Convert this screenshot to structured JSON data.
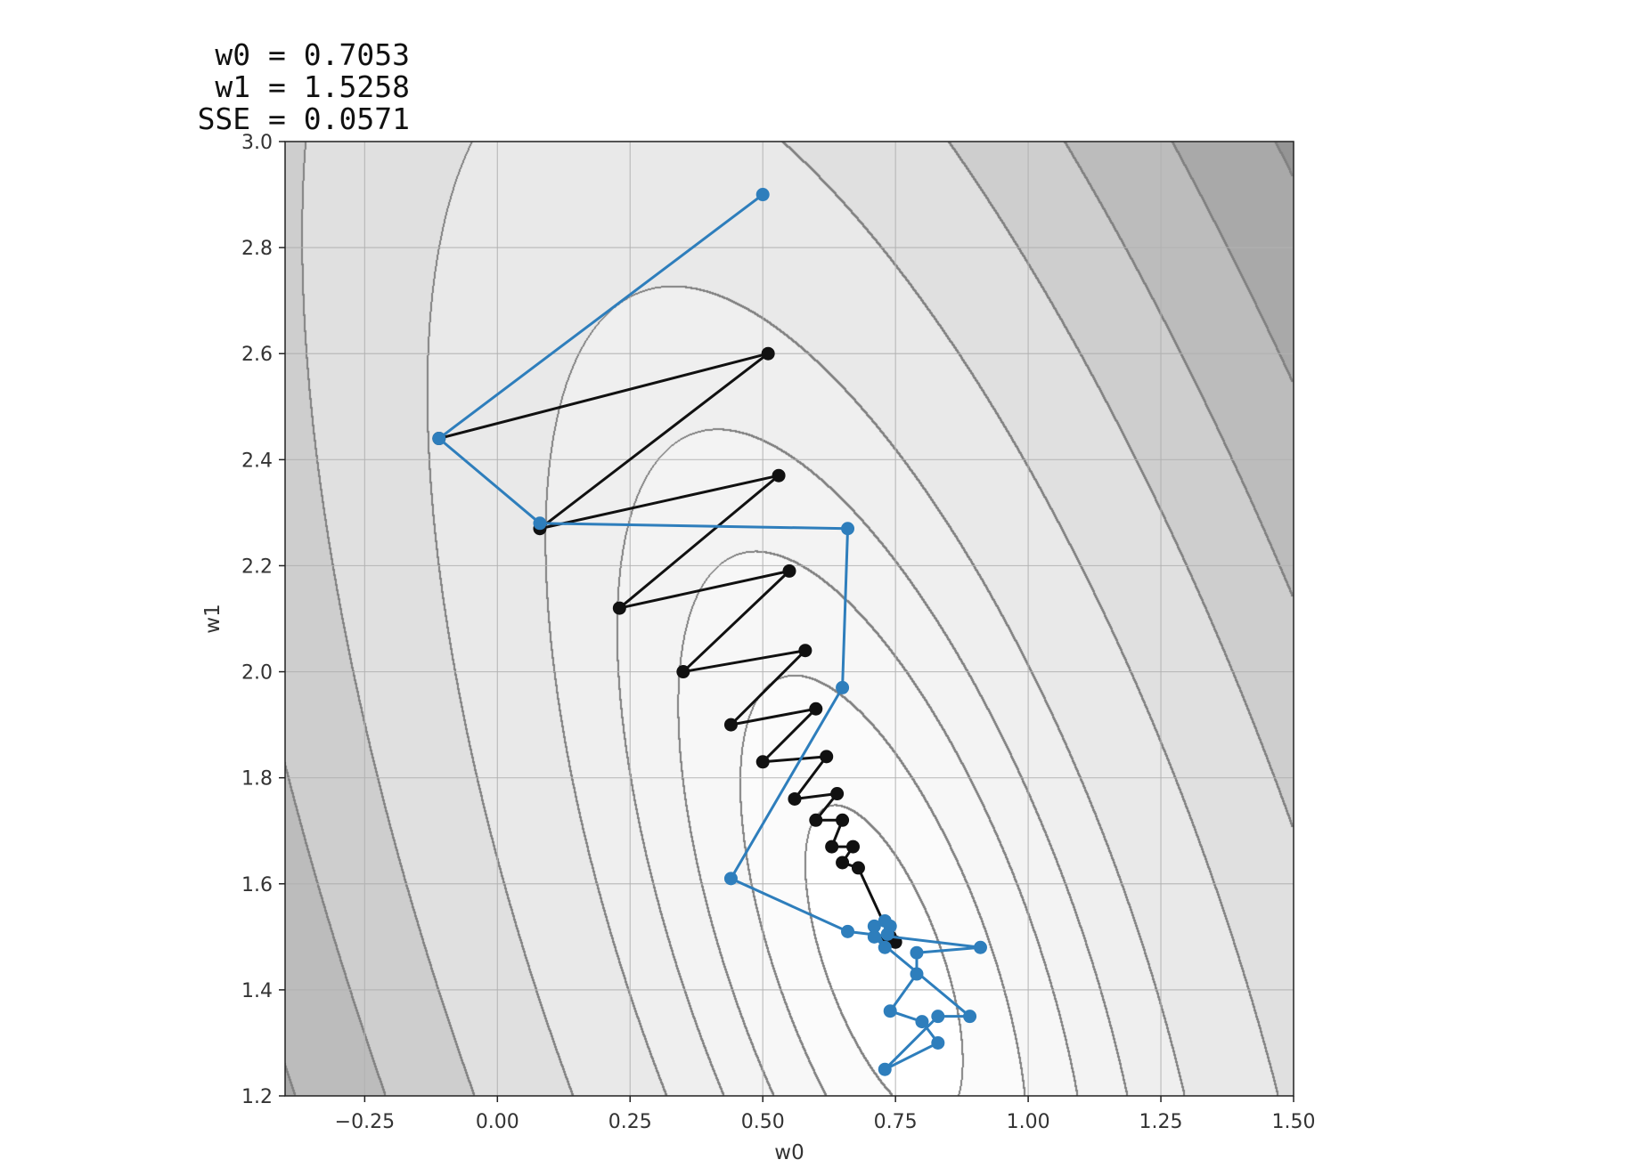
{
  "readout": [
    {
      "label": " w0",
      "value": "0.7053"
    },
    {
      "label": " w1",
      "value": "1.5258"
    },
    {
      "label": "SSE",
      "value": "0.0571"
    }
  ],
  "chart_data": {
    "type": "line",
    "subtype": "contour plot with optimizer paths",
    "title": "",
    "xlabel": "w0",
    "ylabel": "w1",
    "xlim": [
      -0.4,
      1.5
    ],
    "ylim": [
      1.2,
      3.0
    ],
    "xticks": [
      -0.25,
      0.0,
      0.25,
      0.5,
      0.75,
      1.0,
      1.25,
      1.5
    ],
    "xtick_labels": [
      "−0.25",
      "0.00",
      "0.25",
      "0.50",
      "0.75",
      "1.00",
      "1.25",
      "1.50"
    ],
    "yticks": [
      1.2,
      1.4,
      1.6,
      1.8,
      2.0,
      2.2,
      2.4,
      2.6,
      2.8,
      3.0
    ],
    "ytick_labels": [
      "1.2",
      "1.4",
      "1.6",
      "1.8",
      "2.0",
      "2.2",
      "2.4",
      "2.6",
      "2.8",
      "3.0"
    ],
    "grid": true,
    "colors": {
      "series_blue": "#2e7ebc",
      "series_black": "#111111",
      "contour_line": "#808080"
    },
    "contour": {
      "center": [
        0.73,
        1.45
      ],
      "quadratic": [
        3.2,
        2.0,
        0.8
      ],
      "offset": 0.0571,
      "levels": [
        0.1,
        0.2,
        0.35,
        0.55,
        0.85,
        1.5,
        2.4,
        3.4,
        4.6,
        6.0,
        7.6
      ],
      "fills": [
        "#ffffff",
        "#fbfbfb",
        "#f7f7f7",
        "#f3f3f3",
        "#efefef",
        "#e9e9e9",
        "#e0e0e0",
        "#cecece",
        "#bcbcbc",
        "#a9a9a9",
        "#959595",
        "#767676"
      ]
    },
    "series": [
      {
        "color": "#2e7ebc",
        "points": [
          [
            0.5,
            2.9
          ],
          [
            -0.11,
            2.44
          ],
          [
            0.08,
            2.28
          ],
          [
            0.66,
            2.27
          ],
          [
            0.65,
            1.97
          ],
          [
            0.44,
            1.61
          ],
          [
            0.66,
            1.51
          ],
          [
            0.91,
            1.48
          ],
          [
            0.79,
            1.47
          ],
          [
            0.79,
            1.43
          ],
          [
            0.74,
            1.36
          ],
          [
            0.8,
            1.34
          ],
          [
            0.83,
            1.3
          ],
          [
            0.73,
            1.25
          ],
          [
            0.83,
            1.35
          ],
          [
            0.89,
            1.35
          ],
          [
            0.71,
            1.5
          ],
          [
            0.73,
            1.48
          ],
          [
            0.71,
            1.52
          ],
          [
            0.73,
            1.53
          ],
          [
            0.74,
            1.52
          ],
          [
            0.735,
            1.505
          ]
        ]
      },
      {
        "color": "#111111",
        "points": [
          [
            -0.11,
            2.44
          ],
          [
            0.51,
            2.6
          ],
          [
            0.08,
            2.27
          ],
          [
            0.53,
            2.37
          ],
          [
            0.23,
            2.12
          ],
          [
            0.55,
            2.19
          ],
          [
            0.35,
            2.0
          ],
          [
            0.58,
            2.04
          ],
          [
            0.44,
            1.9
          ],
          [
            0.6,
            1.93
          ],
          [
            0.5,
            1.83
          ],
          [
            0.62,
            1.84
          ],
          [
            0.56,
            1.76
          ],
          [
            0.64,
            1.77
          ],
          [
            0.6,
            1.72
          ],
          [
            0.65,
            1.72
          ],
          [
            0.63,
            1.67
          ],
          [
            0.67,
            1.67
          ],
          [
            0.65,
            1.64
          ],
          [
            0.68,
            1.63
          ],
          [
            0.74,
            1.5
          ],
          [
            0.75,
            1.49
          ],
          [
            0.735,
            1.5
          ]
        ]
      }
    ]
  }
}
